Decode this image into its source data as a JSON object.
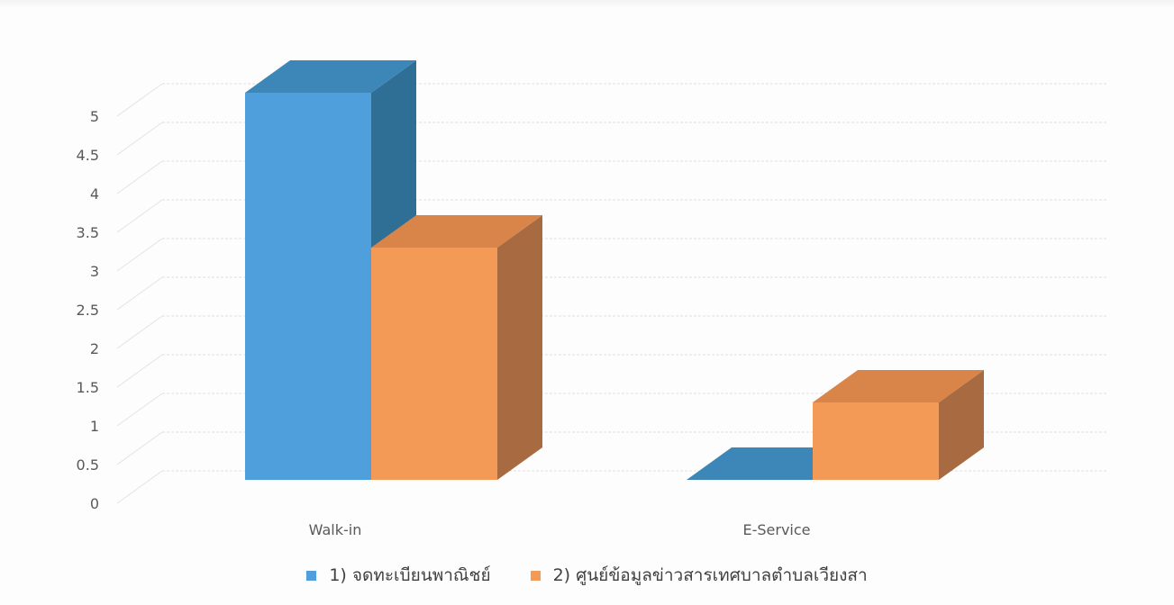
{
  "chart_data": {
    "type": "bar",
    "style": "3d-clustered-column",
    "title": "",
    "xlabel": "",
    "ylabel": "",
    "categories": [
      "Walk-in",
      "E-Service"
    ],
    "series": [
      {
        "name": "1) จดทะเบียนพาณิชย์",
        "values": [
          5,
          0
        ],
        "color": "#4f9fdc",
        "side_color": "#2f6f96",
        "top_color": "#3d86b8"
      },
      {
        "name": "2) ศูนย์ข้อมูลข่าวสารเทศบาลตำบลเวียงสา",
        "values": [
          3,
          1
        ],
        "color": "#f39a57",
        "side_color": "#a86a40",
        "top_color": "#d98448"
      }
    ],
    "ylim": [
      0,
      5
    ],
    "yticks": [
      "0",
      "0.5",
      "1",
      "1.5",
      "2",
      "2.5",
      "3",
      "3.5",
      "4",
      "4.5",
      "5"
    ],
    "grid": true,
    "legend_position": "bottom"
  }
}
